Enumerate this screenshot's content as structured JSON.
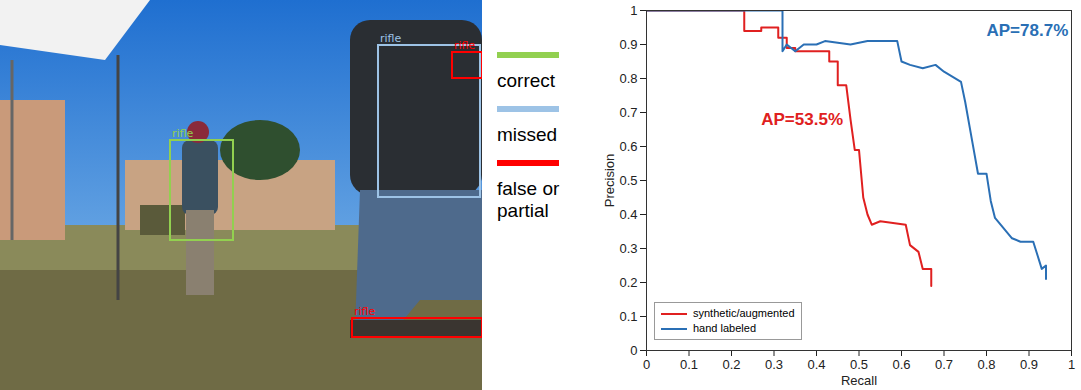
{
  "chart_data": {
    "type": "line",
    "x_label": "Recall",
    "y_label": "Precision",
    "xlim": [
      0,
      1
    ],
    "ylim": [
      0,
      1
    ],
    "xticks": [
      0,
      0.1,
      0.2,
      0.3,
      0.4,
      0.5,
      0.6,
      0.7,
      0.8,
      0.9,
      1
    ],
    "yticks": [
      0,
      0.1,
      0.2,
      0.3,
      0.4,
      0.5,
      0.6,
      0.7,
      0.8,
      0.9,
      1
    ],
    "grid": false,
    "legend": "lower left",
    "series": [
      {
        "name": "synthetic/augmented",
        "color": "#e02020",
        "x": [
          0,
          0.23,
          0.23,
          0.27,
          0.27,
          0.31,
          0.31,
          0.33,
          0.33,
          0.35,
          0.35,
          0.43,
          0.43,
          0.45,
          0.45,
          0.47,
          0.48,
          0.49,
          0.5,
          0.51,
          0.52,
          0.53,
          0.55,
          0.61,
          0.62,
          0.64,
          0.65,
          0.67,
          0.67
        ],
        "values": [
          1,
          1,
          0.94,
          0.94,
          0.95,
          0.95,
          0.92,
          0.92,
          0.89,
          0.89,
          0.88,
          0.88,
          0.85,
          0.85,
          0.78,
          0.78,
          0.68,
          0.59,
          0.59,
          0.45,
          0.4,
          0.37,
          0.38,
          0.37,
          0.31,
          0.29,
          0.24,
          0.24,
          0.19
        ]
      },
      {
        "name": "hand labeled",
        "color": "#2a6fb5",
        "x": [
          0,
          0.32,
          0.32,
          0.33,
          0.35,
          0.37,
          0.4,
          0.42,
          0.48,
          0.52,
          0.59,
          0.6,
          0.62,
          0.65,
          0.68,
          0.7,
          0.74,
          0.75,
          0.76,
          0.77,
          0.78,
          0.8,
          0.81,
          0.82,
          0.84,
          0.86,
          0.88,
          0.91,
          0.92,
          0.93,
          0.94,
          0.94
        ],
        "values": [
          1,
          1,
          0.88,
          0.9,
          0.88,
          0.9,
          0.9,
          0.91,
          0.9,
          0.91,
          0.91,
          0.85,
          0.84,
          0.83,
          0.84,
          0.82,
          0.79,
          0.73,
          0.66,
          0.59,
          0.52,
          0.52,
          0.44,
          0.39,
          0.36,
          0.33,
          0.32,
          0.32,
          0.28,
          0.24,
          0.25,
          0.21
        ]
      }
    ],
    "annotations": [
      {
        "text": "AP=53.5%",
        "x": 0.27,
        "y": 0.68,
        "color": "#e02020"
      },
      {
        "text": "AP=78.7%",
        "x": 0.8,
        "y": 0.94,
        "color": "#2a6fb5"
      }
    ]
  },
  "status_legend": [
    {
      "label": "correct",
      "color": "#92d050"
    },
    {
      "label": "missed",
      "color": "#9dc3e6"
    },
    {
      "label": "false or partial",
      "color": "#ff0000"
    }
  ],
  "image": {
    "detections": [
      {
        "label": "rifle",
        "status": "correct"
      },
      {
        "label": "rifle",
        "status": "missed"
      },
      {
        "label": "rifle",
        "status": "false or partial"
      },
      {
        "label": "rifle",
        "status": "false or partial"
      }
    ]
  }
}
